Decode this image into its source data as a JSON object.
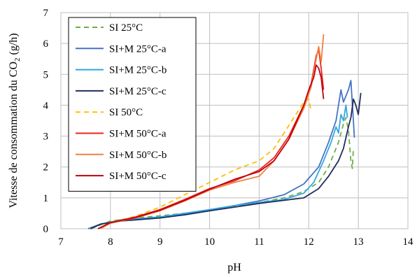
{
  "chart_data": {
    "type": "line",
    "title": "",
    "xlabel": "pH",
    "ylabel_main": "Vitesse de consommation du CO",
    "ylabel_sub": "2",
    "ylabel_tail": " (g/h)",
    "xlim": [
      7,
      14
    ],
    "ylim": [
      0,
      7
    ],
    "x_ticks": [
      "7",
      "8",
      "9",
      "10",
      "11",
      "12",
      "13",
      "14"
    ],
    "y_ticks": [
      "0",
      "1",
      "2",
      "3",
      "4",
      "5",
      "6",
      "7"
    ],
    "grid": true,
    "legend_position": "top-left",
    "series": [
      {
        "name": "SI 25°C",
        "color": "#70ad47",
        "dash": "dashed",
        "x": [
          7.6,
          8.0,
          8.5,
          9.0,
          9.5,
          10.0,
          10.5,
          11.0,
          11.5,
          11.9,
          12.2,
          12.4,
          12.6,
          12.7,
          12.75,
          12.8,
          12.85,
          12.88,
          12.9
        ],
        "y": [
          0.0,
          0.25,
          0.35,
          0.42,
          0.5,
          0.6,
          0.72,
          0.85,
          1.0,
          1.2,
          1.5,
          2.0,
          2.8,
          3.4,
          3.6,
          3.2,
          2.2,
          1.95,
          2.6
        ]
      },
      {
        "name": "SI+M 25°C-a",
        "color": "#4472c4",
        "dash": "solid",
        "x": [
          7.55,
          7.8,
          8.2,
          8.6,
          9.0,
          9.5,
          10.0,
          10.5,
          11.0,
          11.5,
          11.9,
          12.2,
          12.4,
          12.55,
          12.65,
          12.7,
          12.75,
          12.8,
          12.85,
          12.9,
          12.92
        ],
        "y": [
          0.0,
          0.15,
          0.28,
          0.33,
          0.38,
          0.48,
          0.6,
          0.75,
          0.9,
          1.1,
          1.45,
          2.0,
          2.8,
          3.5,
          4.5,
          4.1,
          4.3,
          4.5,
          4.8,
          3.5,
          2.95
        ]
      },
      {
        "name": "SI+M 25°C-b",
        "color": "#2fa8e0",
        "dash": "solid",
        "x": [
          7.6,
          7.8,
          8.2,
          8.6,
          9.0,
          9.5,
          10.0,
          10.5,
          11.0,
          11.5,
          11.9,
          12.1,
          12.3,
          12.45,
          12.55,
          12.6,
          12.65,
          12.7,
          12.75,
          12.78
        ],
        "y": [
          0.0,
          0.15,
          0.28,
          0.33,
          0.38,
          0.5,
          0.62,
          0.75,
          0.85,
          0.95,
          1.15,
          1.5,
          2.2,
          2.8,
          3.3,
          3.1,
          3.7,
          3.5,
          4.0,
          3.6
        ]
      },
      {
        "name": "SI+M 25°C-c",
        "color": "#1f2d5c",
        "dash": "solid",
        "x": [
          7.6,
          7.8,
          8.2,
          8.6,
          9.0,
          9.5,
          10.0,
          10.5,
          11.0,
          11.5,
          11.9,
          12.2,
          12.4,
          12.6,
          12.7,
          12.8,
          12.85,
          12.9,
          12.95,
          13.0,
          13.05
        ],
        "y": [
          0.0,
          0.15,
          0.25,
          0.3,
          0.35,
          0.45,
          0.58,
          0.7,
          0.82,
          0.92,
          1.0,
          1.3,
          1.7,
          2.2,
          2.6,
          3.3,
          3.6,
          4.2,
          4.0,
          3.7,
          4.4
        ]
      },
      {
        "name": "SI 50°C",
        "color": "#ffc000",
        "dash": "dashed",
        "x": [
          7.75,
          8.0,
          8.5,
          9.0,
          9.5,
          10.0,
          10.5,
          11.0,
          11.3,
          11.5,
          11.7,
          11.9,
          12.0,
          12.05
        ],
        "y": [
          0.0,
          0.2,
          0.4,
          0.7,
          1.1,
          1.5,
          1.9,
          2.2,
          2.6,
          3.1,
          3.6,
          4.1,
          4.2,
          3.8
        ]
      },
      {
        "name": "SI+M 50°C-a",
        "color": "#e8241b",
        "dash": "solid",
        "x": [
          7.75,
          8.0,
          8.5,
          9.0,
          9.5,
          10.0,
          10.5,
          11.0,
          11.3,
          11.6,
          11.9,
          12.05,
          12.15,
          12.2,
          12.25,
          12.3
        ],
        "y": [
          0.0,
          0.2,
          0.38,
          0.62,
          0.95,
          1.3,
          1.55,
          1.9,
          2.3,
          3.0,
          4.0,
          4.7,
          5.6,
          5.8,
          5.2,
          4.5
        ]
      },
      {
        "name": "SI+M 50°C-b",
        "color": "#f08040",
        "dash": "solid",
        "x": [
          7.8,
          8.0,
          8.5,
          9.0,
          9.5,
          10.0,
          10.5,
          11.0,
          11.3,
          11.6,
          11.9,
          12.05,
          12.15,
          12.2,
          12.25,
          12.3
        ],
        "y": [
          0.0,
          0.18,
          0.35,
          0.58,
          0.9,
          1.25,
          1.5,
          1.7,
          2.2,
          2.9,
          3.9,
          4.6,
          5.5,
          5.9,
          5.4,
          6.3
        ]
      },
      {
        "name": "SI+M 50°C-c",
        "color": "#c0000f",
        "dash": "solid",
        "x": [
          7.75,
          8.0,
          8.5,
          9.0,
          9.5,
          10.0,
          10.5,
          11.0,
          11.3,
          11.6,
          11.9,
          12.0,
          12.1,
          12.15,
          12.2,
          12.25,
          12.3
        ],
        "y": [
          0.0,
          0.2,
          0.36,
          0.6,
          0.92,
          1.28,
          1.6,
          1.85,
          2.2,
          2.9,
          4.0,
          4.5,
          4.9,
          5.3,
          5.2,
          4.9,
          4.2
        ]
      }
    ]
  }
}
